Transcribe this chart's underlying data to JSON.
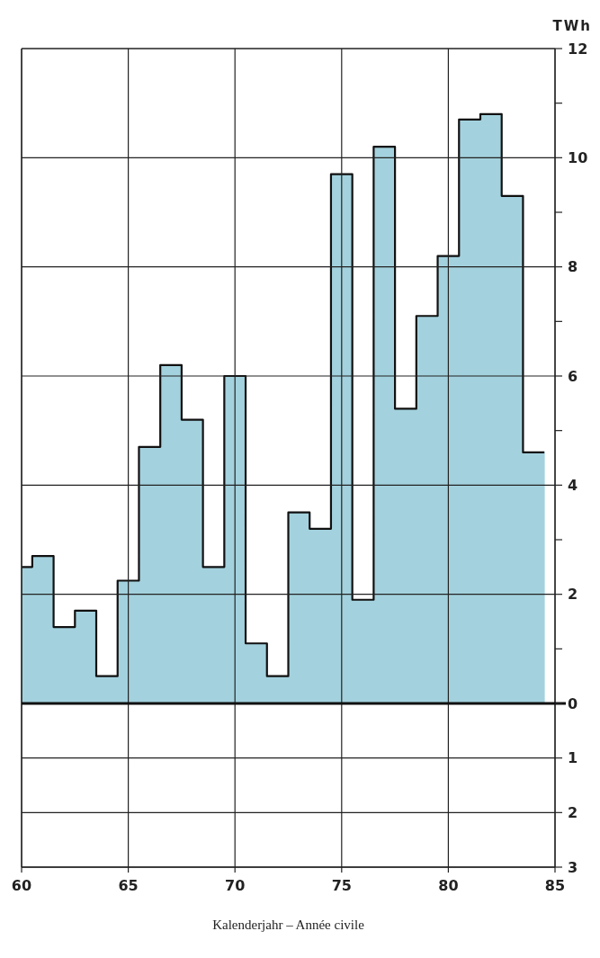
{
  "chart_data": {
    "type": "bar",
    "xlabel": "Kalenderjahr – Année civile",
    "ylabel": "TWh",
    "x": [
      60,
      61,
      62,
      63,
      64,
      65,
      66,
      67,
      68,
      69,
      70,
      71,
      72,
      73,
      74,
      75,
      76,
      77,
      78,
      79,
      80,
      81,
      82,
      83,
      84
    ],
    "values": [
      2.5,
      2.7,
      1.4,
      1.7,
      0.5,
      2.25,
      4.7,
      6.2,
      5.2,
      2.5,
      6.0,
      1.1,
      0.5,
      3.5,
      3.2,
      9.7,
      1.9,
      10.2,
      5.4,
      7.1,
      8.2,
      10.7,
      10.8,
      9.3,
      4.6
    ],
    "color": "#a3d2de",
    "xlim": [
      60,
      85
    ],
    "xticks": [
      60,
      65,
      70,
      75,
      80,
      85
    ],
    "ylim": [
      -3,
      12
    ],
    "yticks": [
      12,
      {
        "value": 11,
        "label": null
      },
      10,
      {
        "value": 9,
        "label": null
      },
      8,
      {
        "value": 7,
        "label": null
      },
      6,
      {
        "value": 5,
        "label": null
      },
      4,
      {
        "value": 3,
        "label": null
      },
      2,
      {
        "value": 1,
        "label": null
      },
      0,
      {
        "value": -1,
        "label": "1"
      },
      {
        "value": -2,
        "label": "2"
      },
      {
        "value": -3,
        "label": "3"
      }
    ],
    "grid": true
  }
}
